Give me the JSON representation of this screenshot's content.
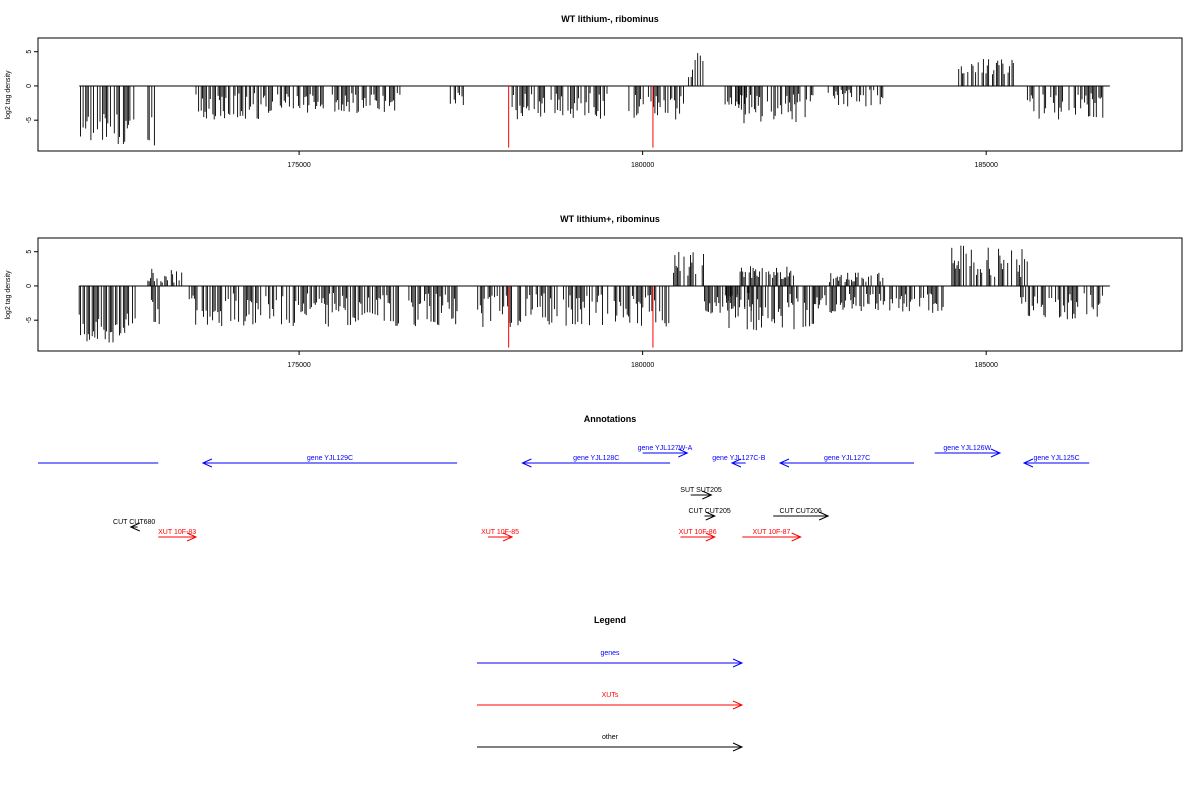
{
  "chart_data": [
    {
      "type": "bar",
      "title": "WT lithium-, ribominus",
      "ylabel": "log2 tag density",
      "xlabel": "",
      "xlim": [
        171200,
        187850
      ],
      "ylim": [
        -9.5,
        7
      ],
      "x_ticks": [
        175000,
        180000,
        185000
      ],
      "x_tick_labels": [
        "175000",
        "180000",
        "185000"
      ],
      "y_ticks": [
        5,
        0,
        -5
      ],
      "y_tick_labels": [
        "5",
        "0",
        "-5"
      ],
      "baseline": {
        "from": 171800,
        "to": 186800,
        "value": 0
      },
      "profile": [
        {
          "from": 171800,
          "to": 172650,
          "min": -8.5,
          "max": -4.0,
          "sign": "neg"
        },
        {
          "from": 172800,
          "to": 172950,
          "min": -9.0,
          "max": -3.0,
          "sign": "neg"
        },
        {
          "from": 173500,
          "to": 174500,
          "min": -5.0,
          "max": -1.0,
          "sign": "neg"
        },
        {
          "from": 174500,
          "to": 176500,
          "min": -4.0,
          "max": -1.0,
          "sign": "neg"
        },
        {
          "from": 177200,
          "to": 177400,
          "min": -3.0,
          "max": -1.0,
          "sign": "neg"
        },
        {
          "from": 178100,
          "to": 179500,
          "min": -5.0,
          "max": -1.0,
          "sign": "neg"
        },
        {
          "from": 179800,
          "to": 180600,
          "min": -5.0,
          "max": -1.0,
          "sign": "neg"
        },
        {
          "from": 180650,
          "to": 180900,
          "min": 1.0,
          "max": 5.0,
          "sign": "pos"
        },
        {
          "from": 181200,
          "to": 181500,
          "min": -3.0,
          "max": -1.0,
          "sign": "neg"
        },
        {
          "from": 181400,
          "to": 182500,
          "min": -5.5,
          "max": -1.0,
          "sign": "neg"
        },
        {
          "from": 182700,
          "to": 183500,
          "min": -3.0,
          "max": -0.5,
          "sign": "neg"
        },
        {
          "from": 184600,
          "to": 185400,
          "min": 1.5,
          "max": 4.0,
          "sign": "pos"
        },
        {
          "from": 185600,
          "to": 186700,
          "min": -5.0,
          "max": -1.0,
          "sign": "neg"
        }
      ],
      "highlights": [
        {
          "x": 178050,
          "value": -9.0,
          "color": "#ff0000"
        },
        {
          "x": 180150,
          "value": -9.0,
          "color": "#ff0000"
        }
      ]
    },
    {
      "type": "bar",
      "title": "WT lithium+, ribominus",
      "ylabel": "log2 tag density",
      "xlabel": "",
      "xlim": [
        171200,
        187850
      ],
      "ylim": [
        -9.5,
        7
      ],
      "x_ticks": [
        175000,
        180000,
        185000
      ],
      "x_tick_labels": [
        "175000",
        "180000",
        "185000"
      ],
      "y_ticks": [
        5,
        0,
        -5
      ],
      "y_tick_labels": [
        "5",
        "0",
        "-5"
      ],
      "baseline": {
        "from": 171800,
        "to": 186800,
        "value": 0
      },
      "profile": [
        {
          "from": 171800,
          "to": 172650,
          "min": -8.5,
          "max": -4.0,
          "sign": "neg"
        },
        {
          "from": 172800,
          "to": 173300,
          "min": 0.5,
          "max": 2.5,
          "sign": "pos"
        },
        {
          "from": 172850,
          "to": 173000,
          "min": -7.0,
          "max": -2.0,
          "sign": "neg"
        },
        {
          "from": 173400,
          "to": 177300,
          "min": -6.0,
          "max": -1.0,
          "sign": "neg"
        },
        {
          "from": 177600,
          "to": 180400,
          "min": -6.0,
          "max": -1.0,
          "sign": "neg"
        },
        {
          "from": 180450,
          "to": 180900,
          "min": 1.0,
          "max": 5.0,
          "sign": "pos"
        },
        {
          "from": 180900,
          "to": 181600,
          "min": -4.0,
          "max": -1.0,
          "sign": "neg"
        },
        {
          "from": 181200,
          "to": 182500,
          "min": -7.0,
          "max": -1.0,
          "sign": "neg"
        },
        {
          "from": 181400,
          "to": 182200,
          "min": 1.0,
          "max": 3.0,
          "sign": "pos"
        },
        {
          "from": 182500,
          "to": 184400,
          "min": -4.0,
          "max": -1.0,
          "sign": "neg"
        },
        {
          "from": 182700,
          "to": 183500,
          "min": 0.5,
          "max": 2.0,
          "sign": "pos"
        },
        {
          "from": 184500,
          "to": 185600,
          "min": 1.0,
          "max": 6.0,
          "sign": "pos"
        },
        {
          "from": 185500,
          "to": 186700,
          "min": -5.0,
          "max": -1.0,
          "sign": "neg"
        }
      ],
      "highlights": [
        {
          "x": 178050,
          "value": -9.0,
          "color": "#ff0000"
        },
        {
          "x": 180150,
          "value": -9.0,
          "color": "#ff0000"
        }
      ]
    }
  ],
  "annotations": {
    "title": "Annotations",
    "xlim": [
      171200,
      187850
    ],
    "colors": {
      "gene": "#0000ff",
      "xut": "#ff0000",
      "other": "#000000"
    },
    "features": [
      {
        "label": "",
        "kind": "gene",
        "start": 171200,
        "end": 172950,
        "strand": "none",
        "row": 0
      },
      {
        "label": "gene YJL129C",
        "kind": "gene",
        "start": 173600,
        "end": 177300,
        "strand": "-",
        "row": 0
      },
      {
        "label": "gene YJL128C",
        "kind": "gene",
        "start": 178250,
        "end": 180400,
        "strand": "-",
        "row": 0
      },
      {
        "label": "gene YJL127W-A",
        "kind": "gene",
        "start": 180000,
        "end": 180650,
        "strand": "+",
        "row": -1
      },
      {
        "label": "gene YJL127C-B",
        "kind": "gene",
        "start": 181300,
        "end": 181500,
        "strand": "-",
        "row": 0
      },
      {
        "label": "gene YJL127C",
        "kind": "gene",
        "start": 182000,
        "end": 183950,
        "strand": "-",
        "row": 0
      },
      {
        "label": "gene YJL126W",
        "kind": "gene",
        "start": 184250,
        "end": 185200,
        "strand": "+",
        "row": -1
      },
      {
        "label": "gene YJL125C",
        "kind": "gene",
        "start": 185550,
        "end": 186500,
        "strand": "-",
        "row": 0
      },
      {
        "label": "SUT SUT205",
        "kind": "other",
        "start": 180700,
        "end": 181000,
        "strand": "+",
        "row": 1
      },
      {
        "label": "CUT CUT205",
        "kind": "other",
        "start": 180900,
        "end": 181050,
        "strand": "+",
        "row": 2
      },
      {
        "label": "CUT CUT206",
        "kind": "other",
        "start": 181900,
        "end": 182700,
        "strand": "+",
        "row": 2
      },
      {
        "label": "CUT CUT680",
        "kind": "other",
        "start": 172550,
        "end": 172650,
        "strand": "-",
        "row": 3
      },
      {
        "label": "XUT 10F-83",
        "kind": "xut",
        "start": 172950,
        "end": 173500,
        "strand": "+",
        "row": 4
      },
      {
        "label": "XUT 10F-85",
        "kind": "xut",
        "start": 177750,
        "end": 178100,
        "strand": "+",
        "row": 4
      },
      {
        "label": "XUT 10F-86",
        "kind": "xut",
        "start": 180550,
        "end": 181050,
        "strand": "+",
        "row": 4
      },
      {
        "label": "XUT 10F-87",
        "kind": "xut",
        "start": 181450,
        "end": 182300,
        "strand": "+",
        "row": 4
      }
    ]
  },
  "legend": {
    "title": "Legend",
    "items": [
      {
        "label": "genes",
        "color": "#0000ff"
      },
      {
        "label": "XUTs",
        "color": "#ff0000"
      },
      {
        "label": "other",
        "color": "#000000"
      }
    ]
  }
}
